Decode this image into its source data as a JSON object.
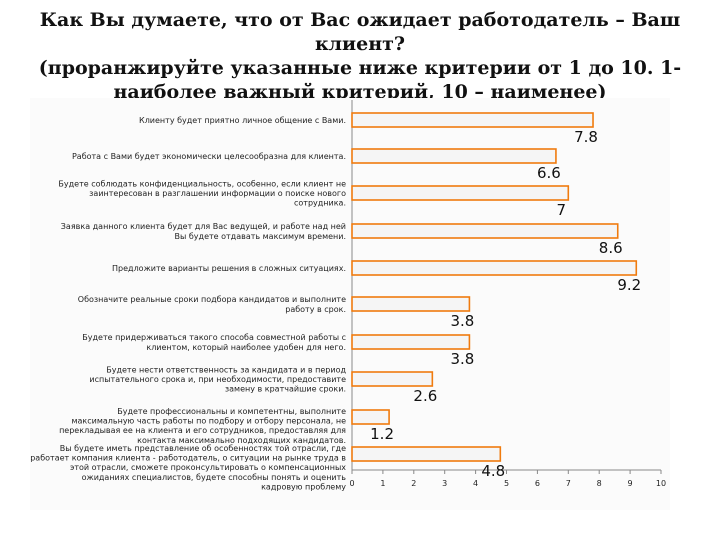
{
  "chart_data": {
    "type": "bar",
    "orientation": "horizontal",
    "title": "Как Вы думаете, что от Вас ожидает работодатель – Ваш клиент?\n(проранжируйте указанные ниже критерии от 1 до 10. 1-\nнаиболее важный критерий, 10 – наименее)",
    "categories": [
      [
        "Клиенту будет приятно личное общение с Вами."
      ],
      [
        "Работа с Вами будет экономически целесообразна для клиента."
      ],
      [
        "Будете соблюдать конфиденциальность, особенно, если клиент не",
        "заинтересован в разглашении информации о поиске нового",
        "сотрудника."
      ],
      [
        "Заявка данного клиента будет для Вас ведущей, и работе над ней",
        "Вы будете отдавать максимум времени."
      ],
      [
        "Предложите варианты решения в сложных ситуациях."
      ],
      [
        "Обозначите реальные сроки подбора кандидатов и выполните",
        "работу в срок."
      ],
      [
        "Будете придерживаться такого способа совместной работы с",
        "клиентом, который наиболее удобен для него."
      ],
      [
        "Будете нести ответственность за кандидата и в период",
        "испытательного срока и, при необходимости, предоставите",
        "замену в кратчайшие сроки."
      ],
      [
        "Будете профессиональны и компетентны, выполните",
        "максимальную часть работы по подбору и отбору персонала, не",
        "перекладывая ее на клиента и его сотрудников, предоставляя для",
        "контакта максимально подходящих кандидатов."
      ],
      [
        "Вы будете иметь представление об особенностях той отрасли, где",
        "работает компания клиента - работодатель, о ситуации на рынке труда в",
        "этой отрасли, сможете проконсультировать о компенсационных",
        "ожиданиях специалистов, будете способны понять и оценить",
        "кадровую проблему"
      ]
    ],
    "values": [
      7.8,
      6.6,
      7,
      8.6,
      9.2,
      3.8,
      3.8,
      2.6,
      1.2,
      4.8
    ],
    "value_labels": [
      "7.8",
      "6.6",
      "7",
      "8.6",
      "9.2",
      "3.8",
      "3.8",
      "2.6",
      "1.2",
      "4.8"
    ],
    "x_ticks": [
      "0",
      "1",
      "2",
      "3",
      "4",
      "5",
      "6",
      "7",
      "8",
      "9",
      "10"
    ],
    "xlim": [
      0,
      10
    ],
    "xlabel": "",
    "ylabel": "",
    "grid": false,
    "legend": "none",
    "bar_fill": "#f5f5f5",
    "bar_stroke": "#f07b0e",
    "axis_color": "#888888"
  }
}
